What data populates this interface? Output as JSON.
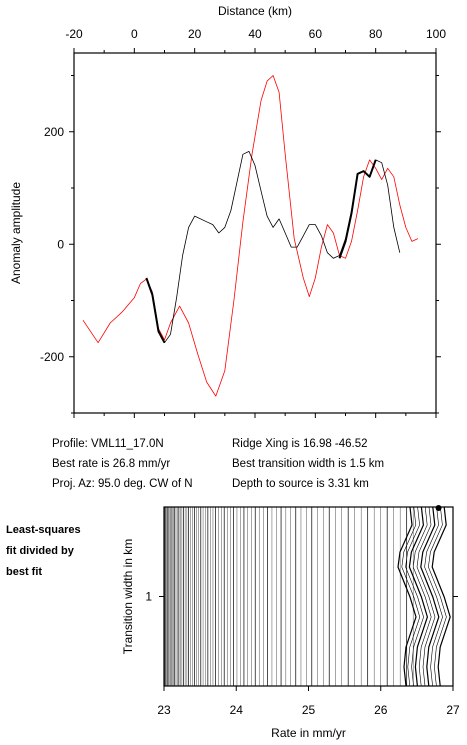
{
  "chart_data": [
    {
      "type": "line",
      "title": "",
      "xlabel": "Distance (km)",
      "ylabel": "Anomaly amplitude",
      "xlim": [
        -20,
        100
      ],
      "ylim": [
        -300,
        340
      ],
      "x_ticks": [
        -20,
        0,
        20,
        40,
        60,
        80,
        100
      ],
      "y_ticks": [
        -200,
        0,
        200
      ],
      "x_axis_position": "top",
      "grid": false,
      "series": [
        {
          "color": "#ff0000",
          "points": [
            [
              -17,
              -135
            ],
            [
              -12,
              -175
            ],
            [
              -8,
              -140
            ],
            [
              -4,
              -120
            ],
            [
              0,
              -95
            ],
            [
              2,
              -70
            ],
            [
              4,
              -62
            ],
            [
              6,
              -85
            ],
            [
              8,
              -150
            ],
            [
              10,
              -170
            ],
            [
              12,
              -140
            ],
            [
              15,
              -110
            ],
            [
              18,
              -140
            ],
            [
              21,
              -195
            ],
            [
              24,
              -245
            ],
            [
              27,
              -270
            ],
            [
              30,
              -225
            ],
            [
              33,
              -100
            ],
            [
              36,
              40
            ],
            [
              39,
              160
            ],
            [
              42,
              255
            ],
            [
              44,
              290
            ],
            [
              46,
              300
            ],
            [
              48,
              270
            ],
            [
              50,
              160
            ],
            [
              53,
              10
            ],
            [
              56,
              -60
            ],
            [
              58,
              -93
            ],
            [
              60,
              -60
            ],
            [
              62,
              -5
            ],
            [
              64,
              35
            ],
            [
              66,
              20
            ],
            [
              68,
              -20
            ],
            [
              70,
              -25
            ],
            [
              72,
              5
            ],
            [
              74,
              60
            ],
            [
              76,
              120
            ],
            [
              78,
              150
            ],
            [
              80,
              135
            ],
            [
              82,
              115
            ],
            [
              84,
              135
            ],
            [
              86,
              120
            ],
            [
              88,
              70
            ],
            [
              90,
              30
            ],
            [
              92,
              5
            ],
            [
              94,
              10
            ]
          ]
        },
        {
          "color": "#000000",
          "points": [
            [
              4,
              -60
            ],
            [
              6,
              -90
            ],
            [
              8,
              -155
            ],
            [
              10,
              -175
            ],
            [
              12,
              -160
            ],
            [
              14,
              -95
            ],
            [
              16,
              -20
            ],
            [
              18,
              30
            ],
            [
              20,
              50
            ],
            [
              24,
              40
            ],
            [
              26,
              35
            ],
            [
              28,
              20
            ],
            [
              30,
              30
            ],
            [
              32,
              60
            ],
            [
              34,
              110
            ],
            [
              36,
              160
            ],
            [
              38,
              165
            ],
            [
              40,
              140
            ],
            [
              42,
              95
            ],
            [
              44,
              50
            ],
            [
              46,
              30
            ],
            [
              48,
              45
            ],
            [
              50,
              20
            ],
            [
              52,
              -5
            ],
            [
              54,
              -5
            ],
            [
              56,
              15
            ],
            [
              58,
              35
            ],
            [
              60,
              35
            ],
            [
              62,
              15
            ],
            [
              64,
              -15
            ],
            [
              66,
              -25
            ],
            [
              68,
              -20
            ],
            [
              70,
              10
            ],
            [
              72,
              60
            ],
            [
              74,
              125
            ],
            [
              76,
              130
            ],
            [
              78,
              120
            ],
            [
              80,
              150
            ],
            [
              82,
              145
            ],
            [
              84,
              105
            ],
            [
              86,
              30
            ],
            [
              88,
              -15
            ]
          ]
        },
        {
          "color": "#000000",
          "bold": true,
          "segments": [
            [
              [
                4,
                -60
              ],
              [
                6,
                -90
              ],
              [
                8,
                -155
              ],
              [
                10,
                -175
              ]
            ],
            [
              [
                68,
                -25
              ],
              [
                70,
                5
              ],
              [
                72,
                55
              ],
              [
                74,
                125
              ],
              [
                76,
                130
              ],
              [
                78,
                120
              ],
              [
                80,
                150
              ]
            ]
          ]
        }
      ]
    },
    {
      "type": "contour",
      "title": "",
      "xlabel": "Rate in mm/yr",
      "ylabel": "Transition width in km",
      "xlim": [
        23,
        27
      ],
      "ylim": [
        0,
        2
      ],
      "x_ticks": [
        23,
        24,
        25,
        26,
        27
      ],
      "y_ticks": [
        1
      ],
      "best_fit_point": [
        26.8,
        1.5
      ]
    }
  ],
  "info": {
    "profile": "Profile: VML11_17.0N",
    "rate": "Best rate is 26.8 mm/yr",
    "azimuth": "Proj. Az: 95.0 deg. CW of N",
    "ridge": "Ridge Xing is 16.98 -46.52",
    "width": "Best transition width is 1.5 km",
    "depth": "Depth to source is   3.31 km"
  },
  "sidebar_label": [
    "Least-squares",
    "fit divided by",
    "best fit"
  ]
}
